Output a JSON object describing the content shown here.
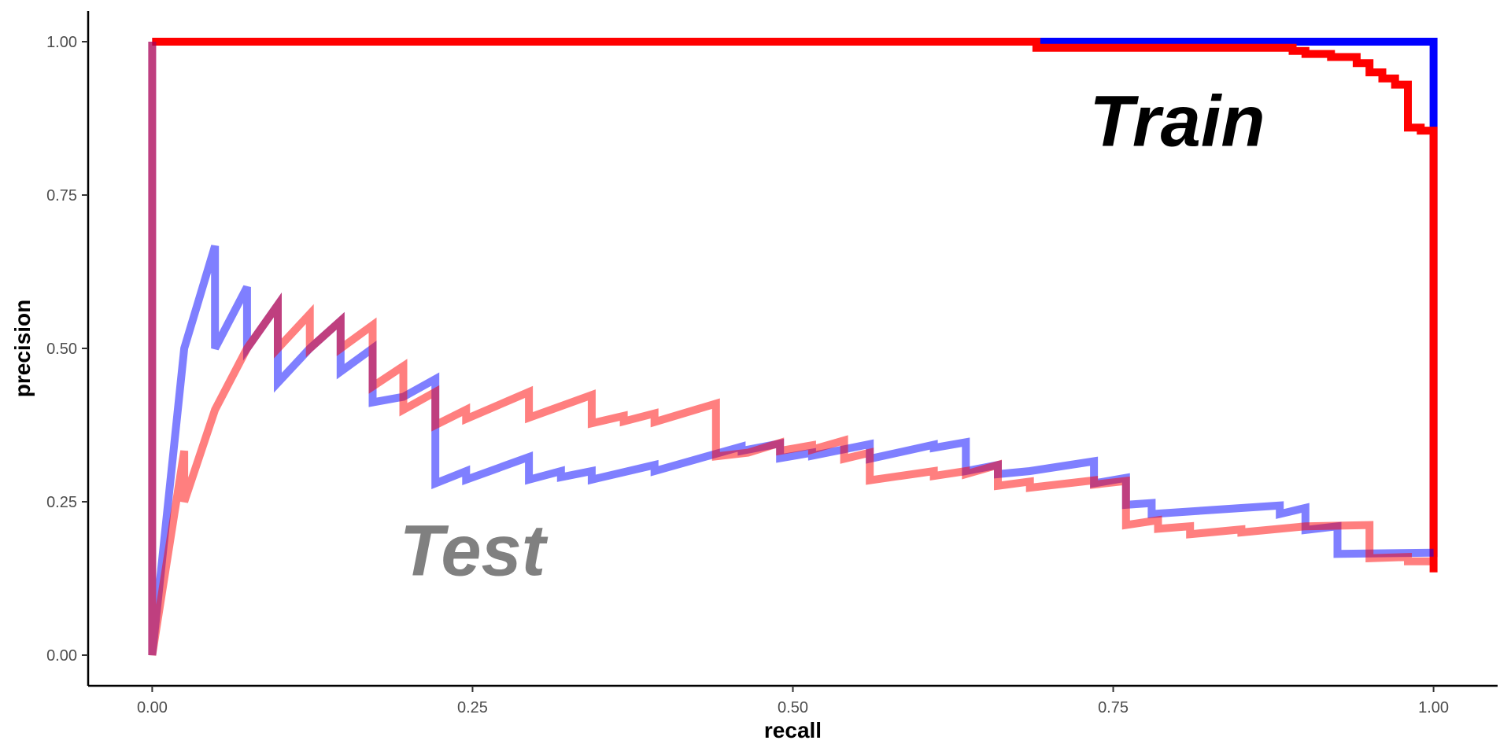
{
  "chart_data": {
    "type": "line",
    "title": "",
    "xlabel": "recall",
    "ylabel": "precision",
    "xlim": [
      -0.05,
      1.05
    ],
    "ylim": [
      -0.05,
      1.05
    ],
    "x_ticks": [
      0.0,
      0.25,
      0.5,
      0.75,
      1.0
    ],
    "x_tick_labels": [
      "0.00",
      "0.25",
      "0.50",
      "0.75",
      "1.00"
    ],
    "y_ticks": [
      0.0,
      0.25,
      0.5,
      0.75,
      1.0
    ],
    "y_tick_labels": [
      "0.00",
      "0.25",
      "0.50",
      "0.75",
      "1.00"
    ],
    "grid": false,
    "legend": "none",
    "annotations": [
      {
        "text": "Train",
        "x": 0.8,
        "y": 0.83,
        "color": "#000000"
      },
      {
        "text": "Test",
        "x": 0.25,
        "y": 0.13,
        "color": "#808080"
      }
    ],
    "series": [
      {
        "color": "#0000ff",
        "opacity": 1.0,
        "points": [
          [
            0,
            1
          ],
          [
            0.69,
            1
          ],
          [
            1.0,
            1
          ],
          [
            1.0,
            0.86
          ],
          [
            1.0,
            0.16
          ]
        ]
      },
      {
        "color": "#ff0000",
        "opacity": 1.0,
        "points": [
          [
            0,
            1
          ],
          [
            0.69,
            1
          ],
          [
            0.69,
            0.99
          ],
          [
            0.89,
            0.99
          ],
          [
            0.89,
            0.985
          ],
          [
            0.9,
            0.985
          ],
          [
            0.9,
            0.98
          ],
          [
            0.92,
            0.98
          ],
          [
            0.92,
            0.975
          ],
          [
            0.94,
            0.975
          ],
          [
            0.94,
            0.965
          ],
          [
            0.95,
            0.965
          ],
          [
            0.95,
            0.95
          ],
          [
            0.96,
            0.95
          ],
          [
            0.96,
            0.94
          ],
          [
            0.97,
            0.94
          ],
          [
            0.97,
            0.93
          ],
          [
            0.98,
            0.93
          ],
          [
            0.98,
            0.86
          ],
          [
            0.99,
            0.86
          ],
          [
            0.99,
            0.855
          ],
          [
            1.0,
            0.855
          ],
          [
            1.0,
            0.135
          ]
        ]
      },
      {
        "color": "#0000ff",
        "opacity": 0.5,
        "points": [
          [
            0,
            1
          ],
          [
            0,
            0
          ],
          [
            0.025,
            0.5
          ],
          [
            0.049,
            0.667
          ],
          [
            0.049,
            0.5
          ],
          [
            0.074,
            0.6
          ],
          [
            0.074,
            0.5
          ],
          [
            0.098,
            0.571
          ],
          [
            0.098,
            0.444
          ],
          [
            0.123,
            0.5
          ],
          [
            0.147,
            0.545
          ],
          [
            0.147,
            0.462
          ],
          [
            0.172,
            0.5
          ],
          [
            0.172,
            0.412
          ],
          [
            0.196,
            0.421
          ],
          [
            0.196,
            0.421
          ],
          [
            0.221,
            0.45
          ],
          [
            0.221,
            0.28
          ],
          [
            0.245,
            0.3
          ],
          [
            0.245,
            0.286
          ],
          [
            0.294,
            0.323
          ],
          [
            0.294,
            0.286
          ],
          [
            0.319,
            0.3
          ],
          [
            0.319,
            0.29
          ],
          [
            0.343,
            0.3
          ],
          [
            0.343,
            0.286
          ],
          [
            0.392,
            0.31
          ],
          [
            0.392,
            0.3
          ],
          [
            0.46,
            0.34
          ],
          [
            0.46,
            0.333
          ],
          [
            0.49,
            0.345
          ],
          [
            0.49,
            0.321
          ],
          [
            0.515,
            0.33
          ],
          [
            0.515,
            0.325
          ],
          [
            0.56,
            0.344
          ],
          [
            0.56,
            0.32
          ],
          [
            0.61,
            0.343
          ],
          [
            0.61,
            0.338
          ],
          [
            0.635,
            0.347
          ],
          [
            0.635,
            0.3
          ],
          [
            0.66,
            0.31
          ],
          [
            0.66,
            0.295
          ],
          [
            0.685,
            0.3
          ],
          [
            0.735,
            0.316
          ],
          [
            0.735,
            0.28
          ],
          [
            0.76,
            0.289
          ],
          [
            0.76,
            0.245
          ],
          [
            0.78,
            0.248
          ],
          [
            0.78,
            0.23
          ],
          [
            0.88,
            0.244
          ],
          [
            0.88,
            0.23
          ],
          [
            0.9,
            0.24
          ],
          [
            0.9,
            0.204
          ],
          [
            0.925,
            0.21
          ],
          [
            0.925,
            0.165
          ],
          [
            1.0,
            0.167
          ]
        ]
      },
      {
        "color": "#ff0000",
        "opacity": 0.5,
        "points": [
          [
            0,
            1
          ],
          [
            0,
            0
          ],
          [
            0.025,
            0.333
          ],
          [
            0.025,
            0.25
          ],
          [
            0.049,
            0.4
          ],
          [
            0.074,
            0.5
          ],
          [
            0.098,
            0.571
          ],
          [
            0.098,
            0.5
          ],
          [
            0.123,
            0.556
          ],
          [
            0.123,
            0.5
          ],
          [
            0.147,
            0.545
          ],
          [
            0.147,
            0.5
          ],
          [
            0.172,
            0.538
          ],
          [
            0.172,
            0.438
          ],
          [
            0.196,
            0.471
          ],
          [
            0.196,
            0.4
          ],
          [
            0.221,
            0.429
          ],
          [
            0.221,
            0.375
          ],
          [
            0.245,
            0.4
          ],
          [
            0.245,
            0.385
          ],
          [
            0.294,
            0.429
          ],
          [
            0.294,
            0.387
          ],
          [
            0.343,
            0.424
          ],
          [
            0.343,
            0.378
          ],
          [
            0.368,
            0.39
          ],
          [
            0.368,
            0.381
          ],
          [
            0.392,
            0.394
          ],
          [
            0.392,
            0.38
          ],
          [
            0.44,
            0.41
          ],
          [
            0.44,
            0.324
          ],
          [
            0.465,
            0.33
          ],
          [
            0.49,
            0.346
          ],
          [
            0.49,
            0.333
          ],
          [
            0.515,
            0.342
          ],
          [
            0.515,
            0.335
          ],
          [
            0.54,
            0.35
          ],
          [
            0.54,
            0.32
          ],
          [
            0.56,
            0.33
          ],
          [
            0.56,
            0.285
          ],
          [
            0.61,
            0.3
          ],
          [
            0.61,
            0.292
          ],
          [
            0.635,
            0.3
          ],
          [
            0.635,
            0.295
          ],
          [
            0.66,
            0.31
          ],
          [
            0.66,
            0.276
          ],
          [
            0.685,
            0.283
          ],
          [
            0.685,
            0.273
          ],
          [
            0.735,
            0.285
          ],
          [
            0.735,
            0.278
          ],
          [
            0.76,
            0.284
          ],
          [
            0.76,
            0.212
          ],
          [
            0.785,
            0.22
          ],
          [
            0.785,
            0.206
          ],
          [
            0.81,
            0.21
          ],
          [
            0.81,
            0.197
          ],
          [
            0.85,
            0.205
          ],
          [
            0.85,
            0.2
          ],
          [
            0.9,
            0.21
          ],
          [
            0.95,
            0.212
          ],
          [
            0.95,
            0.158
          ],
          [
            0.98,
            0.16
          ],
          [
            0.98,
            0.153
          ],
          [
            1.0,
            0.153
          ]
        ]
      }
    ]
  }
}
